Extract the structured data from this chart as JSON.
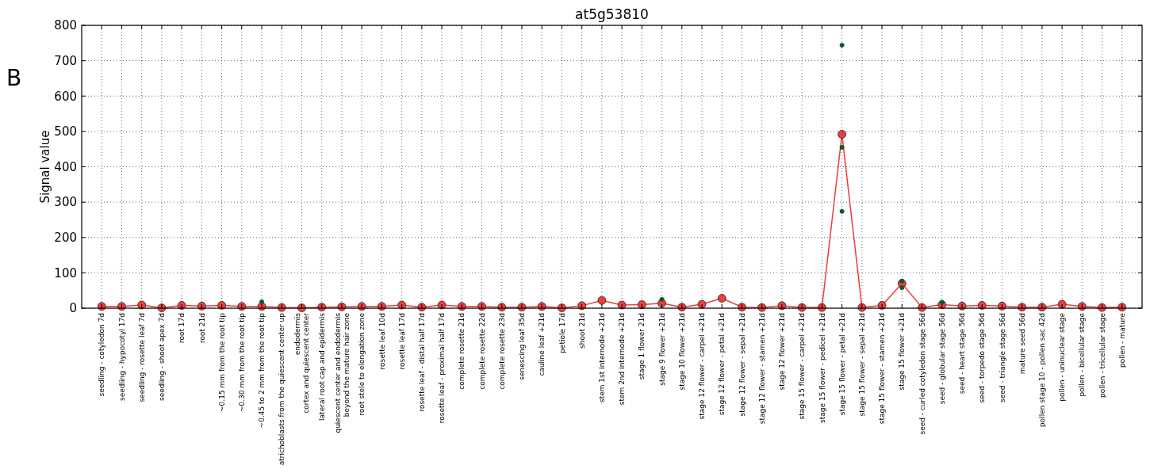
{
  "chart_data": {
    "type": "line",
    "title": "at5g53810",
    "ylabel": "Signal value",
    "annotations": [
      "B"
    ],
    "categories": [
      "seedling - cotyledon 7d",
      "seedling - hypocotyl 17d",
      "seedling - rosette leaf 7d",
      "seedling - shoot apex 7d",
      "root 17d",
      "root 21d",
      "~0.15 mm from the root tip",
      "~0.30 mm from the root tip",
      "~0.45 to 2 mm from the root tip",
      "atrichoblasts from the quiescent center up",
      "endodermis\ncortex and quiescent center",
      "lateral root cap and epidermis",
      "quiescent center and endodermis\nbeyond the mature hair zone",
      "root stele to elongation zone",
      "rosette leaf 10d",
      "rosette leaf 17d",
      "rosette leaf - distal half 17d",
      "rosette leaf - proximal half 17d",
      "complete rosette 21d",
      "complete rosette 22d",
      "complete rosette 23d",
      "senescing leaf 35d",
      "cauline leaf +21d",
      "petiole 17d",
      "shoot 21d",
      "stem 1st internode +21d",
      "stem 2nd internode +21d",
      "stage 1 flower 21d",
      "stage 9 flower +21d",
      "stage 10 flower +21d",
      "stage 12 flower - carpel +21d",
      "stage 12 flower - petal +21d",
      "stage 12 flower - sepal +21d",
      "stage 12 flower - stamen +21d",
      "stage 12 flower +21d",
      "stage 15 flower - carpel +21d",
      "stage 15 flower - pedicel +21d",
      "stage 15 flower - petal +21d",
      "stage 15 flower - sepal +21d",
      "stage 15 flower - stamen +21d",
      "stage 15 flower +21d",
      "seed - curled cotyledon stage 56d",
      "seed - globular stage 56d",
      "seed - heart stage 56d",
      "seed - torpedo stage 56d",
      "seed - triangle stage 56d",
      "mature seed 56d",
      "pollen stage 10 - pollen sac  42d",
      "pollen - uninuclear stage",
      "pollen - bicellular stage",
      "pollen - tricellular stage",
      "pollen - mature"
    ],
    "series": [
      {
        "type": "scatter",
        "color": "#0b5a2a",
        "marker": "circle",
        "x": [
          "~0.45 to 2 mm from the root tip",
          "stage 9 flower +21d",
          "stage 15 flower - petal +21d",
          "stage 15 flower - petal +21d",
          "stage 15 flower - petal +21d",
          "stage 15 flower +21d",
          "stage 15 flower +21d",
          "seed - globular stage 56d"
        ],
        "values": [
          18,
          25,
          744,
          455,
          274,
          77,
          58,
          17
        ]
      },
      {
        "color": "#f03c3c",
        "marker": "circle",
        "values": [
          5,
          5,
          9,
          1,
          8,
          6,
          8,
          5,
          5,
          2,
          1,
          3,
          4,
          5,
          5,
          9,
          3,
          9,
          5,
          5,
          3,
          3,
          5,
          1,
          7,
          22,
          9,
          10,
          14,
          3,
          11,
          28,
          3,
          2,
          7,
          2,
          2,
          492,
          2,
          8,
          70,
          2,
          10,
          6,
          8,
          6,
          3,
          3,
          11,
          5,
          2,
          3
        ]
      }
    ],
    "ylim": [
      0,
      800
    ],
    "yticks": [
      0,
      100,
      200,
      300,
      400,
      500,
      600,
      700,
      800
    ],
    "grid": true,
    "line_style": "solid"
  }
}
